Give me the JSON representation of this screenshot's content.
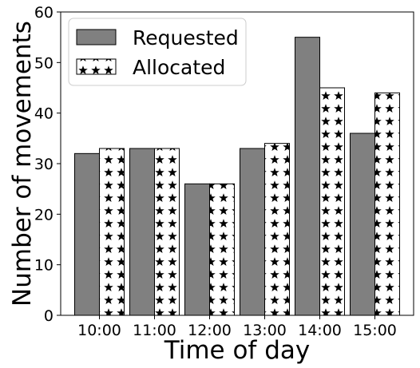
{
  "chart_data": {
    "type": "bar",
    "title": "",
    "xlabel": "Time of day",
    "ylabel": "Number of movements",
    "categories": [
      "10:00",
      "11:00",
      "12:00",
      "13:00",
      "14:00",
      "15:00"
    ],
    "series": [
      {
        "name": "Requested",
        "values": [
          32,
          33,
          26,
          33,
          55,
          36
        ],
        "color": "#808080",
        "pattern": "solid"
      },
      {
        "name": "Allocated",
        "values": [
          33,
          33,
          26,
          34,
          45,
          44
        ],
        "color": "#ffffff",
        "pattern": "stars"
      }
    ],
    "ylim": [
      0,
      60
    ],
    "yticks": [
      0,
      10,
      20,
      30,
      40,
      50,
      60
    ],
    "grid": false,
    "legend_position": "top-left"
  }
}
